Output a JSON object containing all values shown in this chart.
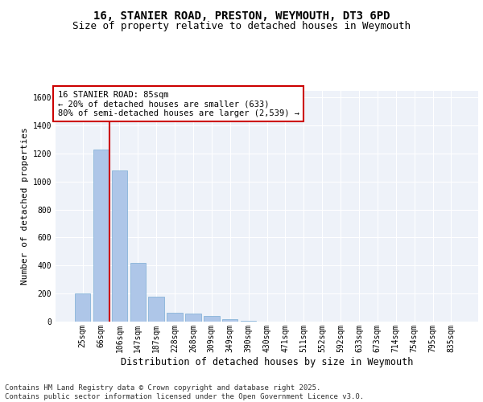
{
  "title_line1": "16, STANIER ROAD, PRESTON, WEYMOUTH, DT3 6PD",
  "title_line2": "Size of property relative to detached houses in Weymouth",
  "xlabel": "Distribution of detached houses by size in Weymouth",
  "ylabel": "Number of detached properties",
  "categories": [
    "25sqm",
    "66sqm",
    "106sqm",
    "147sqm",
    "187sqm",
    "228sqm",
    "268sqm",
    "309sqm",
    "349sqm",
    "390sqm",
    "430sqm",
    "471sqm",
    "511sqm",
    "552sqm",
    "592sqm",
    "633sqm",
    "673sqm",
    "714sqm",
    "754sqm",
    "795sqm",
    "835sqm"
  ],
  "values": [
    200,
    1230,
    1080,
    420,
    180,
    65,
    55,
    40,
    15,
    5,
    0,
    0,
    0,
    0,
    0,
    0,
    0,
    0,
    0,
    0,
    0
  ],
  "bar_color": "#aec6e8",
  "bar_edge_color": "#7aadd4",
  "property_line_x": 1.48,
  "annotation_text": "16 STANIER ROAD: 85sqm\n← 20% of detached houses are smaller (633)\n80% of semi-detached houses are larger (2,539) →",
  "annotation_box_color": "#ffffff",
  "annotation_box_edge": "#cc0000",
  "line_color": "#cc0000",
  "ylim": [
    0,
    1650
  ],
  "background_color": "#eef2f9",
  "footer_text": "Contains HM Land Registry data © Crown copyright and database right 2025.\nContains public sector information licensed under the Open Government Licence v3.0.",
  "title_fontsize": 10,
  "subtitle_fontsize": 9,
  "tick_fontsize": 7,
  "ylabel_fontsize": 8,
  "xlabel_fontsize": 8.5,
  "footer_fontsize": 6.5,
  "ann_fontsize": 7.5
}
